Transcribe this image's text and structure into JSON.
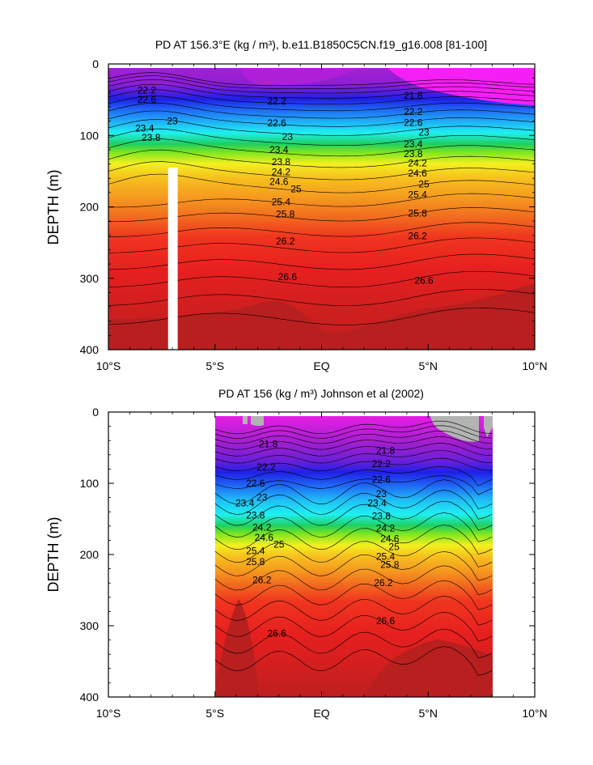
{
  "chart_data": [
    {
      "type": "contour",
      "title": "PD AT 156.3°E (kg / m³), b.e11.B1850C5CN.f19_g16.008 [81-100]",
      "ylabel": "DEPTH (m)",
      "xlim": [
        -10,
        10
      ],
      "ylim": [
        0,
        400
      ],
      "y_inverted": true,
      "x_ticks": [
        "10°S",
        "5°S",
        "EQ",
        "5°N",
        "10°N"
      ],
      "y_ticks": [
        "0",
        "100",
        "200",
        "300",
        "400"
      ],
      "data_extent": [
        -10,
        10
      ],
      "surface_depth": 5,
      "masked_column": {
        "x": [
          -7.2,
          -6.75
        ],
        "depth": [
          145,
          400
        ]
      },
      "contour_labels": [
        {
          "text": "22.2",
          "x": -8.2,
          "depth": 37
        },
        {
          "text": "22.6",
          "x": -8.2,
          "depth": 50
        },
        {
          "text": "23",
          "x": -7.0,
          "depth": 80
        },
        {
          "text": "23.4",
          "x": -8.3,
          "depth": 90
        },
        {
          "text": "23.8",
          "x": -8.0,
          "depth": 103
        },
        {
          "text": "22.2",
          "x": -2.1,
          "depth": 52
        },
        {
          "text": "22.6",
          "x": -2.1,
          "depth": 83
        },
        {
          "text": "23",
          "x": -1.6,
          "depth": 102
        },
        {
          "text": "23.4",
          "x": -2.0,
          "depth": 120
        },
        {
          "text": "23.8",
          "x": -1.9,
          "depth": 137
        },
        {
          "text": "24.2",
          "x": -1.9,
          "depth": 151
        },
        {
          "text": "24.6",
          "x": -2.0,
          "depth": 165
        },
        {
          "text": "25",
          "x": -1.2,
          "depth": 175
        },
        {
          "text": "25.4",
          "x": -1.9,
          "depth": 193
        },
        {
          "text": "25.8",
          "x": -1.7,
          "depth": 210
        },
        {
          "text": "26.2",
          "x": -1.7,
          "depth": 248
        },
        {
          "text": "26.6",
          "x": -1.6,
          "depth": 298
        },
        {
          "text": "21.8",
          "x": 4.3,
          "depth": 44
        },
        {
          "text": "22.2",
          "x": 4.3,
          "depth": 67
        },
        {
          "text": "22.6",
          "x": 4.3,
          "depth": 82
        },
        {
          "text": "23",
          "x": 4.8,
          "depth": 96
        },
        {
          "text": "23.4",
          "x": 4.3,
          "depth": 112
        },
        {
          "text": "23.8",
          "x": 4.3,
          "depth": 126
        },
        {
          "text": "24.2",
          "x": 4.5,
          "depth": 139
        },
        {
          "text": "24.6",
          "x": 4.5,
          "depth": 153
        },
        {
          "text": "25",
          "x": 4.8,
          "depth": 168
        },
        {
          "text": "25.4",
          "x": 4.5,
          "depth": 183
        },
        {
          "text": "25.8",
          "x": 4.5,
          "depth": 209
        },
        {
          "text": "26.2",
          "x": 4.5,
          "depth": 241
        },
        {
          "text": "26.6",
          "x": 4.8,
          "depth": 303
        }
      ]
    },
    {
      "type": "contour",
      "title": "PD AT 156 (kg / m³) Johnson et al (2002)",
      "ylabel": "DEPTH (m)",
      "xlim": [
        -10,
        10
      ],
      "ylim": [
        0,
        400
      ],
      "y_inverted": true,
      "x_ticks": [
        "10°S",
        "5°S",
        "EQ",
        "5°N",
        "10°N"
      ],
      "y_ticks": [
        "0",
        "100",
        "200",
        "300",
        "400"
      ],
      "data_extent": [
        -5,
        8
      ],
      "surface_depth": 5,
      "contour_labels": [
        {
          "text": "21.8",
          "x": -2.5,
          "depth": 45
        },
        {
          "text": "22.2",
          "x": -2.6,
          "depth": 77
        },
        {
          "text": "22.6",
          "x": -3.1,
          "depth": 100
        },
        {
          "text": "23",
          "x": -2.8,
          "depth": 120
        },
        {
          "text": "23.4",
          "x": -3.6,
          "depth": 128
        },
        {
          "text": "23.8",
          "x": -3.1,
          "depth": 145
        },
        {
          "text": "24.2",
          "x": -2.8,
          "depth": 162
        },
        {
          "text": "24.6",
          "x": -2.7,
          "depth": 176
        },
        {
          "text": "25",
          "x": -2.0,
          "depth": 186
        },
        {
          "text": "25.4",
          "x": -3.1,
          "depth": 195
        },
        {
          "text": "25.8",
          "x": -3.1,
          "depth": 210
        },
        {
          "text": "26.2",
          "x": -2.8,
          "depth": 236
        },
        {
          "text": "26.6",
          "x": -2.1,
          "depth": 311
        },
        {
          "text": "21.8",
          "x": 3.0,
          "depth": 54
        },
        {
          "text": "22.2",
          "x": 2.8,
          "depth": 73
        },
        {
          "text": "22.6",
          "x": 2.8,
          "depth": 95
        },
        {
          "text": "23",
          "x": 2.8,
          "depth": 115
        },
        {
          "text": "23.4",
          "x": 2.6,
          "depth": 128
        },
        {
          "text": "23.8",
          "x": 2.8,
          "depth": 146
        },
        {
          "text": "24.2",
          "x": 3.0,
          "depth": 163
        },
        {
          "text": "24.6",
          "x": 3.2,
          "depth": 178
        },
        {
          "text": "25",
          "x": 3.4,
          "depth": 189
        },
        {
          "text": "25.4",
          "x": 3.0,
          "depth": 203
        },
        {
          "text": "25.8",
          "x": 3.2,
          "depth": 214
        },
        {
          "text": "26.2",
          "x": 2.9,
          "depth": 240
        },
        {
          "text": "26.6",
          "x": 3.0,
          "depth": 293
        }
      ]
    }
  ]
}
